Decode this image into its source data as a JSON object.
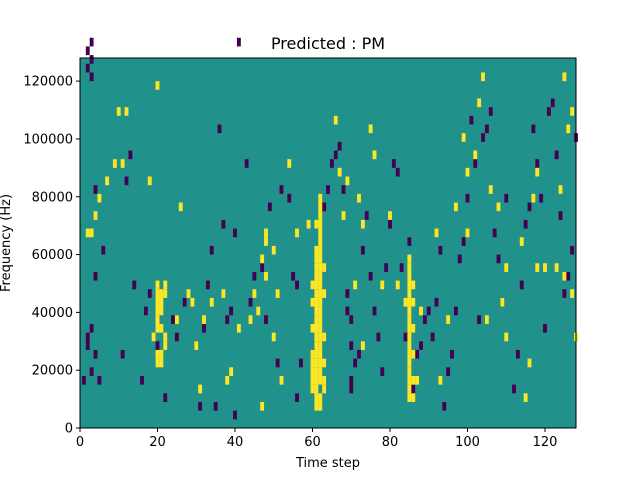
{
  "chart_data": {
    "type": "heatmap",
    "title": "Predicted : PM",
    "xlabel": "Time step",
    "ylabel": "Frequency (Hz)",
    "xlim": [
      0,
      128
    ],
    "ylim": [
      0,
      128000
    ],
    "x_ticks": [
      0,
      20,
      40,
      60,
      80,
      100,
      120
    ],
    "y_ticks": [
      0,
      20000,
      40000,
      60000,
      80000,
      100000,
      120000
    ],
    "y_tick_labels": [
      "0",
      "20000",
      "40000",
      "60000",
      "80000",
      "100000",
      "120000"
    ],
    "grid": false,
    "legend": "none",
    "background_value": 0,
    "colors": {
      "-1": "#440154",
      "0": "#21918c",
      "1": "#fde725"
    },
    "yellow_cells": [
      [
        61,
        2
      ],
      [
        62,
        2
      ],
      [
        61,
        3
      ],
      [
        62,
        3
      ],
      [
        60,
        4
      ],
      [
        61,
        4
      ],
      [
        63,
        4
      ],
      [
        60,
        5
      ],
      [
        61,
        5
      ],
      [
        62,
        5
      ],
      [
        63,
        5
      ],
      [
        60,
        6
      ],
      [
        61,
        6
      ],
      [
        62,
        6
      ],
      [
        60,
        7
      ],
      [
        61,
        7
      ],
      [
        62,
        7
      ],
      [
        60,
        8
      ],
      [
        61,
        8
      ],
      [
        62,
        8
      ],
      [
        61,
        9
      ],
      [
        62,
        9
      ],
      [
        61,
        10
      ],
      [
        62,
        10
      ],
      [
        63,
        10
      ],
      [
        60,
        11
      ],
      [
        61,
        11
      ],
      [
        62,
        11
      ],
      [
        61,
        12
      ],
      [
        62,
        12
      ],
      [
        61,
        13
      ],
      [
        62,
        13
      ],
      [
        60,
        14
      ],
      [
        61,
        14
      ],
      [
        62,
        14
      ],
      [
        61,
        15
      ],
      [
        62,
        15
      ],
      [
        63,
        15
      ],
      [
        60,
        16
      ],
      [
        61,
        16
      ],
      [
        62,
        16
      ],
      [
        61,
        17
      ],
      [
        62,
        17
      ],
      [
        61,
        18
      ],
      [
        62,
        18
      ],
      [
        63,
        18
      ],
      [
        61,
        19
      ],
      [
        62,
        19
      ],
      [
        61,
        20
      ],
      [
        62,
        20
      ],
      [
        62,
        21
      ],
      [
        62,
        22
      ],
      [
        61,
        23
      ],
      [
        62,
        23
      ],
      [
        62,
        24
      ],
      [
        62,
        25
      ],
      [
        62,
        26
      ],
      [
        85,
        3
      ],
      [
        86,
        3
      ],
      [
        85,
        4
      ],
      [
        85,
        5
      ],
      [
        86,
        5
      ],
      [
        85,
        6
      ],
      [
        85,
        7
      ],
      [
        85,
        8
      ],
      [
        86,
        8
      ],
      [
        85,
        9
      ],
      [
        85,
        10
      ],
      [
        85,
        11
      ],
      [
        86,
        11
      ],
      [
        85,
        12
      ],
      [
        85,
        13
      ],
      [
        85,
        14
      ],
      [
        86,
        14
      ],
      [
        85,
        15
      ],
      [
        85,
        16
      ],
      [
        86,
        16
      ],
      [
        85,
        17
      ],
      [
        85,
        18
      ],
      [
        85,
        19
      ],
      [
        20,
        7
      ],
      [
        21,
        7
      ],
      [
        20,
        8
      ],
      [
        21,
        8
      ],
      [
        22,
        9
      ],
      [
        22,
        10
      ],
      [
        19,
        10
      ],
      [
        20,
        11
      ],
      [
        21,
        11
      ],
      [
        20,
        12
      ],
      [
        20,
        13
      ],
      [
        21,
        13
      ],
      [
        20,
        14
      ],
      [
        21,
        14
      ],
      [
        20,
        15
      ],
      [
        21,
        15
      ],
      [
        20,
        16
      ],
      [
        22,
        16
      ],
      [
        2,
        22
      ],
      [
        3,
        22
      ],
      [
        4,
        24
      ],
      [
        5,
        26
      ],
      [
        7,
        28
      ],
      [
        9,
        30
      ],
      [
        11,
        30
      ],
      [
        10,
        36
      ],
      [
        12,
        36
      ],
      [
        18,
        28
      ],
      [
        20,
        39
      ],
      [
        20,
        12
      ],
      [
        22,
        15
      ],
      [
        25,
        12
      ],
      [
        26,
        25
      ],
      [
        28,
        15
      ],
      [
        29,
        14
      ],
      [
        30,
        9
      ],
      [
        31,
        4
      ],
      [
        32,
        12
      ],
      [
        34,
        14
      ],
      [
        37,
        15
      ],
      [
        38,
        5
      ],
      [
        39,
        6
      ],
      [
        41,
        11
      ],
      [
        44,
        12
      ],
      [
        45,
        15
      ],
      [
        46,
        13
      ],
      [
        47,
        2
      ],
      [
        47,
        19
      ],
      [
        48,
        22
      ],
      [
        48,
        17
      ],
      [
        48,
        21
      ],
      [
        50,
        10
      ],
      [
        51,
        15
      ],
      [
        50,
        20
      ],
      [
        52,
        5
      ],
      [
        54,
        30
      ],
      [
        56,
        22
      ],
      [
        59,
        23
      ],
      [
        63,
        7
      ],
      [
        66,
        35
      ],
      [
        67,
        29
      ],
      [
        68,
        24
      ],
      [
        69,
        28
      ],
      [
        71,
        16
      ],
      [
        72,
        26
      ],
      [
        73,
        23
      ],
      [
        73,
        9
      ],
      [
        75,
        34
      ],
      [
        76,
        31
      ],
      [
        78,
        16
      ],
      [
        80,
        24
      ],
      [
        82,
        16
      ],
      [
        84,
        14
      ],
      [
        87,
        5
      ],
      [
        88,
        13
      ],
      [
        92,
        22
      ],
      [
        93,
        5
      ],
      [
        95,
        12
      ],
      [
        97,
        25
      ],
      [
        99,
        33
      ],
      [
        100,
        29
      ],
      [
        100,
        22
      ],
      [
        102,
        31
      ],
      [
        103,
        37
      ],
      [
        104,
        40
      ],
      [
        105,
        12
      ],
      [
        106,
        27
      ],
      [
        108,
        25
      ],
      [
        109,
        14
      ],
      [
        110,
        10
      ],
      [
        110,
        18
      ],
      [
        114,
        21
      ],
      [
        115,
        3
      ],
      [
        116,
        7
      ],
      [
        117,
        26
      ],
      [
        118,
        18
      ],
      [
        118,
        29
      ],
      [
        120,
        18
      ],
      [
        123,
        18
      ],
      [
        124,
        27
      ],
      [
        125,
        17
      ],
      [
        125,
        40
      ],
      [
        126,
        34
      ],
      [
        127,
        36
      ],
      [
        127,
        15
      ],
      [
        128,
        10
      ]
    ],
    "purple_cells": [
      [
        2,
        43
      ],
      [
        3,
        40
      ],
      [
        2,
        41
      ],
      [
        3,
        42
      ],
      [
        3,
        44
      ],
      [
        2,
        9
      ],
      [
        2,
        10
      ],
      [
        3,
        11
      ],
      [
        1,
        5
      ],
      [
        3,
        6
      ],
      [
        4,
        8
      ],
      [
        5,
        5
      ],
      [
        4,
        17
      ],
      [
        6,
        20
      ],
      [
        4,
        27
      ],
      [
        11,
        8
      ],
      [
        12,
        28
      ],
      [
        13,
        31
      ],
      [
        14,
        16
      ],
      [
        16,
        5
      ],
      [
        17,
        13
      ],
      [
        18,
        15
      ],
      [
        20,
        9
      ],
      [
        22,
        3
      ],
      [
        24,
        12
      ],
      [
        25,
        10
      ],
      [
        27,
        14
      ],
      [
        30,
        9
      ],
      [
        31,
        2
      ],
      [
        32,
        11
      ],
      [
        33,
        16
      ],
      [
        34,
        20
      ],
      [
        35,
        2
      ],
      [
        36,
        34
      ],
      [
        37,
        23
      ],
      [
        38,
        12
      ],
      [
        39,
        13
      ],
      [
        40,
        1
      ],
      [
        40,
        22
      ],
      [
        41,
        44
      ],
      [
        43,
        30
      ],
      [
        44,
        14
      ],
      [
        45,
        17
      ],
      [
        47,
        18
      ],
      [
        48,
        12
      ],
      [
        49,
        25
      ],
      [
        51,
        7
      ],
      [
        52,
        27
      ],
      [
        54,
        26
      ],
      [
        55,
        17
      ],
      [
        56,
        3
      ],
      [
        56,
        16
      ],
      [
        57,
        7
      ],
      [
        60,
        8
      ],
      [
        61,
        9
      ],
      [
        62,
        10
      ],
      [
        63,
        25
      ],
      [
        64,
        27
      ],
      [
        65,
        30
      ],
      [
        66,
        31
      ],
      [
        67,
        32
      ],
      [
        68,
        27
      ],
      [
        69,
        13
      ],
      [
        69,
        15
      ],
      [
        70,
        5
      ],
      [
        70,
        12
      ],
      [
        70,
        9
      ],
      [
        70,
        4
      ],
      [
        71,
        7
      ],
      [
        72,
        8
      ],
      [
        73,
        20
      ],
      [
        74,
        24
      ],
      [
        75,
        17
      ],
      [
        76,
        13
      ],
      [
        77,
        10
      ],
      [
        78,
        6
      ],
      [
        79,
        18
      ],
      [
        80,
        23
      ],
      [
        81,
        30
      ],
      [
        82,
        29
      ],
      [
        83,
        18
      ],
      [
        84,
        10
      ],
      [
        85,
        21
      ],
      [
        86,
        4
      ],
      [
        87,
        8
      ],
      [
        88,
        9
      ],
      [
        89,
        12
      ],
      [
        90,
        13
      ],
      [
        91,
        10
      ],
      [
        92,
        14
      ],
      [
        93,
        20
      ],
      [
        94,
        2
      ],
      [
        95,
        6
      ],
      [
        96,
        8
      ],
      [
        97,
        13
      ],
      [
        98,
        19
      ],
      [
        99,
        21
      ],
      [
        100,
        26
      ],
      [
        101,
        35
      ],
      [
        102,
        30
      ],
      [
        103,
        12
      ],
      [
        104,
        33
      ],
      [
        105,
        34
      ],
      [
        106,
        36
      ],
      [
        107,
        22
      ],
      [
        108,
        19
      ],
      [
        109,
        14
      ],
      [
        110,
        26
      ],
      [
        112,
        4
      ],
      [
        113,
        8
      ],
      [
        114,
        16
      ],
      [
        115,
        23
      ],
      [
        116,
        25
      ],
      [
        117,
        34
      ],
      [
        118,
        30
      ],
      [
        119,
        26
      ],
      [
        120,
        11
      ],
      [
        121,
        36
      ],
      [
        122,
        37
      ],
      [
        123,
        31
      ],
      [
        124,
        24
      ],
      [
        125,
        15
      ],
      [
        126,
        17
      ],
      [
        127,
        20
      ],
      [
        128,
        33
      ]
    ]
  }
}
